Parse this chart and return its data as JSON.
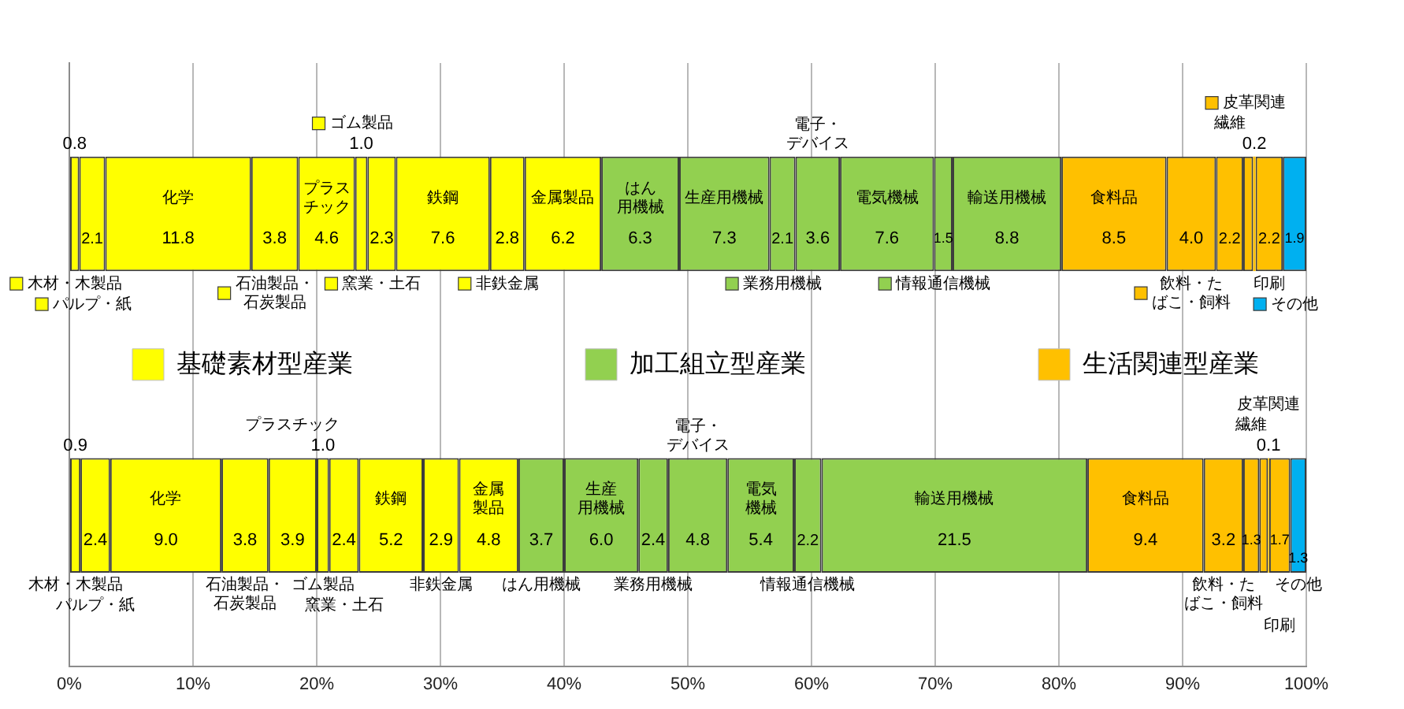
{
  "chart_data": {
    "type": "bar",
    "orientation": "horizontal",
    "stacked": true,
    "categories": [
      null,
      null
    ],
    "xlim": [
      0,
      100
    ],
    "xticks": [
      {
        "value": 0,
        "label": "0%"
      },
      {
        "value": 10,
        "label": "10%"
      },
      {
        "value": 20,
        "label": "20%"
      },
      {
        "value": 30,
        "label": "30%"
      },
      {
        "value": 40,
        "label": "40%"
      },
      {
        "value": 50,
        "label": "50%"
      },
      {
        "value": 60,
        "label": "60%"
      },
      {
        "value": 70,
        "label": "70%"
      },
      {
        "value": 80,
        "label": "80%"
      },
      {
        "value": 90,
        "label": "90%"
      },
      {
        "value": 100,
        "label": "100%"
      }
    ],
    "grid": "x",
    "legend": "center",
    "series": [
      {
        "name": "木材・木製品",
        "color": "#ffff00",
        "values": [
          0.8,
          0.9
        ],
        "value_labels": [
          "0.8",
          "0.9"
        ]
      },
      {
        "name": "パルプ・紙",
        "color": "#ffff00",
        "values": [
          2.1,
          2.4
        ],
        "value_labels": [
          "2.1",
          "2.4"
        ]
      },
      {
        "name": "化学",
        "color": "#ffff00",
        "values": [
          11.8,
          9.0
        ],
        "value_labels": [
          "11.8",
          "9.0"
        ]
      },
      {
        "name": "石油製品・石炭製品",
        "color": "#ffff00",
        "values": [
          3.8,
          3.8
        ],
        "value_labels": [
          "3.8",
          "3.8"
        ]
      },
      {
        "name": "プラスチック",
        "color": "#ffff00",
        "values": [
          4.6,
          3.9
        ],
        "value_labels": [
          "4.6",
          "3.9"
        ]
      },
      {
        "name": "ゴム製品",
        "color": "#ffff00",
        "values": [
          1.0,
          1.0
        ],
        "value_labels": [
          "1.0",
          "1.0"
        ]
      },
      {
        "name": "窯業・土石",
        "color": "#ffff00",
        "values": [
          2.3,
          2.4
        ],
        "value_labels": [
          "2.3",
          "2.4"
        ]
      },
      {
        "name": "鉄鋼",
        "color": "#ffff00",
        "values": [
          7.6,
          5.2
        ],
        "value_labels": [
          "7.6",
          "5.2"
        ]
      },
      {
        "name": "非鉄金属",
        "color": "#ffff00",
        "values": [
          2.8,
          2.9
        ],
        "value_labels": [
          "2.8",
          "2.9"
        ]
      },
      {
        "name": "金属製品",
        "color": "#ffff00",
        "values": [
          6.2,
          4.8
        ],
        "value_labels": [
          "6.2",
          "4.8"
        ]
      },
      {
        "name": "はん用機械",
        "color": "#92d050",
        "values": [
          6.3,
          3.7
        ],
        "value_labels": [
          "6.3",
          "3.7"
        ]
      },
      {
        "name": "生産用機械",
        "color": "#92d050",
        "values": [
          7.3,
          6.0
        ],
        "value_labels": [
          "7.3",
          "6.0"
        ]
      },
      {
        "name": "業務用機械",
        "color": "#92d050",
        "values": [
          2.1,
          2.4
        ],
        "value_labels": [
          "2.1",
          "2.4"
        ]
      },
      {
        "name": "電子・デバイス",
        "color": "#92d050",
        "values": [
          3.6,
          4.8
        ],
        "value_labels": [
          "3.6",
          "4.8"
        ]
      },
      {
        "name": "電気機械",
        "color": "#92d050",
        "values": [
          7.6,
          5.4
        ],
        "value_labels": [
          "7.6",
          "5.4"
        ]
      },
      {
        "name": "情報通信機械",
        "color": "#92d050",
        "values": [
          1.5,
          2.2
        ],
        "value_labels": [
          "1.5",
          "2.2"
        ]
      },
      {
        "name": "輸送用機械",
        "color": "#92d050",
        "values": [
          8.8,
          21.5
        ],
        "value_labels": [
          "8.8",
          "21.5"
        ]
      },
      {
        "name": "食料品",
        "color": "#ffc000",
        "values": [
          8.5,
          9.4
        ],
        "value_labels": [
          "8.5",
          "9.4"
        ]
      },
      {
        "name": "飲料・たばこ・飼料",
        "color": "#ffc000",
        "values": [
          4.0,
          3.2
        ],
        "value_labels": [
          "4.0",
          "3.2"
        ]
      },
      {
        "name": "繊維",
        "color": "#ffc000",
        "values": [
          2.2,
          1.3
        ],
        "value_labels": [
          "2.2",
          "1.3"
        ]
      },
      {
        "color": "#ffc000",
        "values": [
          0.8,
          0.7
        ],
        "value_labels": [
          null,
          null
        ]
      },
      {
        "name": "皮革関連",
        "color": "#ffc000",
        "values": [
          0.2,
          0.1
        ],
        "value_labels": [
          "0.2",
          "0.1"
        ]
      },
      {
        "name": "印刷",
        "color": "#ffc000",
        "values": [
          2.2,
          1.7
        ],
        "value_labels": [
          "2.2",
          "1.7"
        ]
      },
      {
        "name": "その他",
        "color": "#00b0f0",
        "values": [
          1.9,
          1.3
        ],
        "value_labels": [
          "1.9",
          "1.3"
        ]
      },
      {
        "name": "基礎素材型産業",
        "color": "#ffff00",
        "values": [
          null,
          null
        ]
      },
      {
        "name": "加工組立型産業",
        "color": "#92d050",
        "values": [
          null,
          null
        ]
      },
      {
        "name": "生活関連型産業",
        "color": "#ffc000",
        "values": [
          null,
          null
        ]
      }
    ]
  }
}
